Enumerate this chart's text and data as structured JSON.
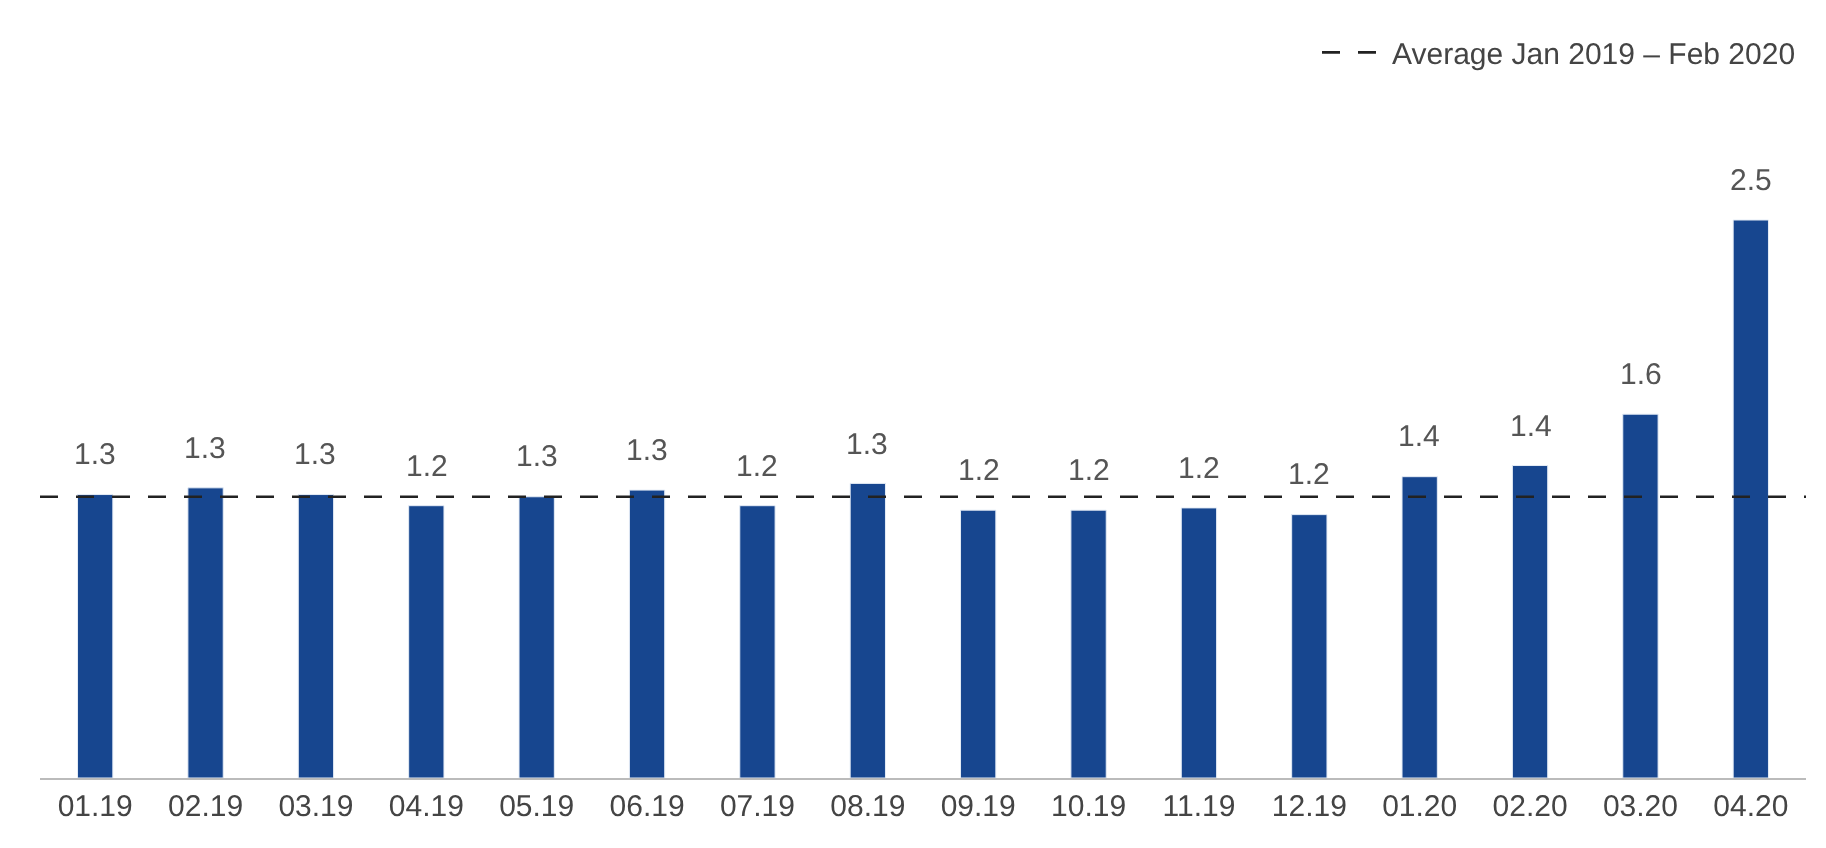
{
  "chart_data": {
    "type": "bar",
    "categories": [
      "01.19",
      "02.19",
      "03.19",
      "04.19",
      "05.19",
      "06.19",
      "07.19",
      "08.19",
      "09.19",
      "10.19",
      "11.19",
      "12.19",
      "01.20",
      "02.20",
      "03.20",
      "04.20"
    ],
    "values": [
      1.27,
      1.3,
      1.27,
      1.22,
      1.26,
      1.29,
      1.22,
      1.32,
      1.2,
      1.2,
      1.21,
      1.18,
      1.35,
      1.4,
      1.63,
      2.5
    ],
    "value_labels": [
      "1.3",
      "1.3",
      "1.3",
      "1.2",
      "1.3",
      "1.3",
      "1.2",
      "1.3",
      "1.2",
      "1.2",
      "1.2",
      "1.2",
      "1.4",
      "1.4",
      "1.6",
      "2.5"
    ],
    "color": "#17468f",
    "ref_lines": [
      {
        "axis": "y",
        "value": 1.26,
        "label": "Average Jan 2019 – Feb 2020",
        "color": "#222222",
        "line_style": "dashed"
      }
    ],
    "legend": "top right"
  }
}
